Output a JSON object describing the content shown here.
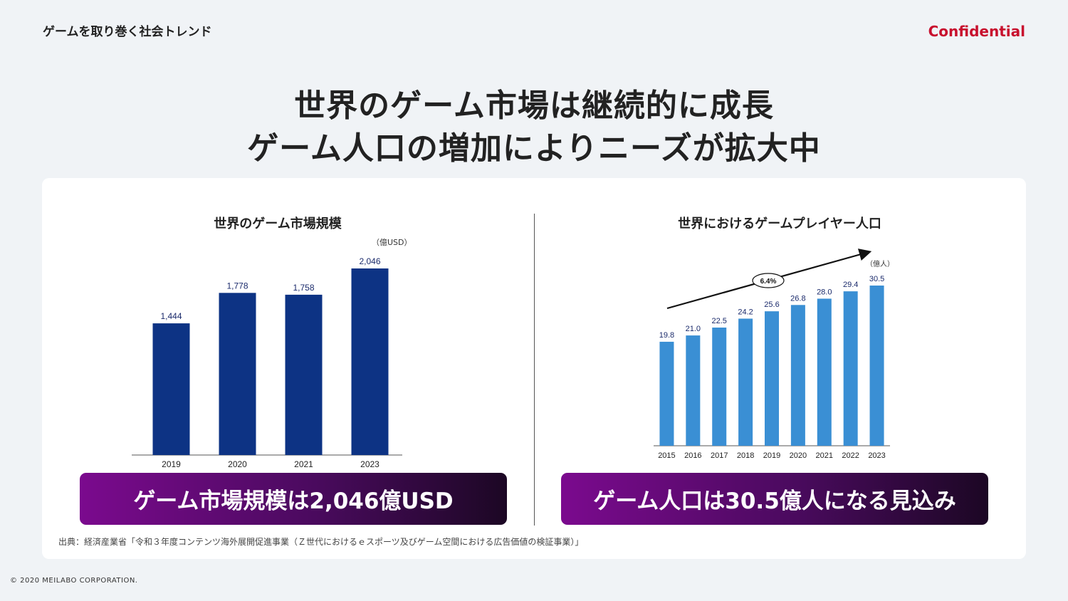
{
  "header": {
    "section": "ゲームを取り巻く社会トレンド",
    "confidential": "Confidential"
  },
  "headline": {
    "line1": "世界のゲーム市場は継続的に成長",
    "line2": "ゲーム人口の増加によりニーズが拡大中"
  },
  "chart_data": [
    {
      "type": "bar",
      "title": "世界のゲーム市場規模",
      "unit": "（億USD）",
      "categories": [
        "2019",
        "2020",
        "2021",
        "2023"
      ],
      "values": [
        1444,
        1778,
        1758,
        2046
      ],
      "labels": [
        "1,444",
        "1,778",
        "1,758",
        "2,046"
      ],
      "ylim": [
        0,
        2200
      ],
      "color": "#0d3384"
    },
    {
      "type": "bar",
      "title": "世界におけるゲームプレイヤー人口",
      "unit": "（億人）",
      "categories": [
        "2015",
        "2016",
        "2017",
        "2018",
        "2019",
        "2020",
        "2021",
        "2022",
        "2023"
      ],
      "values": [
        19.8,
        21.0,
        22.5,
        24.2,
        25.6,
        26.8,
        28.0,
        29.4,
        30.5
      ],
      "labels": [
        "19.8",
        "21.0",
        "22.5",
        "24.2",
        "25.6",
        "26.8",
        "28.0",
        "29.4",
        "30.5"
      ],
      "ylim": [
        0,
        33
      ],
      "growth_label": "6.4%",
      "color": "#3a8fd4"
    }
  ],
  "banners": {
    "left": "ゲーム市場規模は2,046億USD",
    "right": "ゲーム人口は30.5億人になる見込み"
  },
  "source": "出典：経済産業省「令和３年度コンテンツ海外展開促進事業（Ｚ世代におけるｅスポーツ及びゲーム空間における広告価値の検証事業）」",
  "footer": "© 2020 MEILABO CORPORATION."
}
